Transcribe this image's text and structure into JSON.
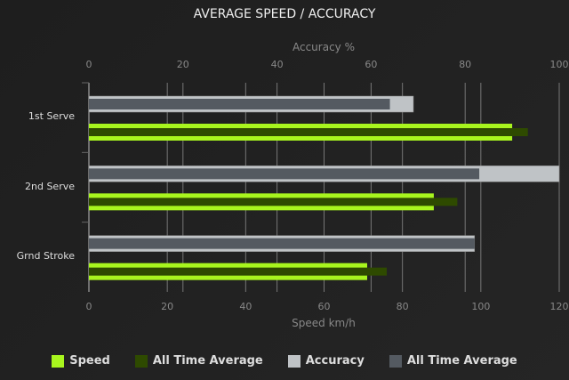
{
  "chart_data": {
    "type": "bar",
    "orientation": "horizontal",
    "title": "AVERAGE SPEED / ACCURACY",
    "categories": [
      "1st Serve",
      "2nd Serve",
      "Grnd Stroke"
    ],
    "top_axis": {
      "label": "Accuracy %",
      "range": [
        0,
        100
      ],
      "ticks": [
        "0",
        "20",
        "40",
        "60",
        "80",
        "100"
      ]
    },
    "bottom_axis": {
      "label": "Speed km/h",
      "range": [
        0,
        120
      ],
      "ticks": [
        "0",
        "20",
        "40",
        "60",
        "80",
        "100",
        "120"
      ]
    },
    "series": [
      {
        "name": "Speed",
        "axis": "bottom",
        "color": "#a8f51e",
        "values": [
          108,
          88,
          71
        ]
      },
      {
        "name": "All Time Average",
        "axis": "bottom",
        "color": "#2e4a00",
        "values": [
          112,
          94,
          76
        ]
      },
      {
        "name": "Accuracy",
        "axis": "top",
        "color": "#bfc3c6",
        "values": [
          69,
          100,
          82
        ]
      },
      {
        "name": "All Time Average",
        "axis": "top",
        "color": "#545a61",
        "values": [
          64,
          83,
          82
        ]
      }
    ],
    "grid": true,
    "legend": "bottom"
  }
}
